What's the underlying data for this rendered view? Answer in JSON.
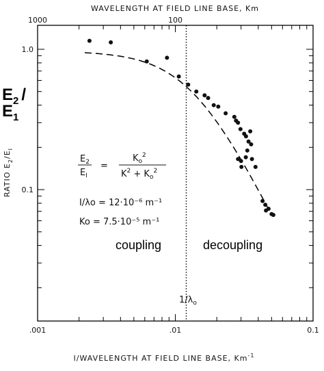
{
  "chart_data": {
    "type": "scatter",
    "top_axis_label": "WAVELENGTH AT FIELD LINE BASE, Km",
    "top_ticks": [
      "1000",
      "100"
    ],
    "xlabel": "I/WAVELENGTH AT FIELD LINE BASE, Km",
    "xlabel_sup": "-1",
    "ylabel": "RATIO E",
    "ylabel_sub1": "2",
    "ylabel_mid": "/E",
    "ylabel_sub2": "I",
    "x_ticks": [
      ".001",
      ".01",
      "0.1"
    ],
    "y_ticks": [
      "1.0",
      "0.1"
    ],
    "xlim": [
      0.001,
      0.1
    ],
    "ylim": [
      0.01,
      1.4
    ],
    "scale": "log-log",
    "points": [
      [
        0.00238,
        1.15
      ],
      [
        0.0034,
        1.12
      ],
      [
        0.0062,
        0.82
      ],
      [
        0.0087,
        0.87
      ],
      [
        0.0106,
        0.64
      ],
      [
        0.0124,
        0.56
      ],
      [
        0.0142,
        0.5
      ],
      [
        0.0163,
        0.47
      ],
      [
        0.0173,
        0.45
      ],
      [
        0.019,
        0.4
      ],
      [
        0.0205,
        0.39
      ],
      [
        0.0232,
        0.35
      ],
      [
        0.0268,
        0.33
      ],
      [
        0.0276,
        0.31
      ],
      [
        0.0285,
        0.3
      ],
      [
        0.0297,
        0.27
      ],
      [
        0.0316,
        0.25
      ],
      [
        0.0326,
        0.24
      ],
      [
        0.034,
        0.22
      ],
      [
        0.0355,
        0.21
      ],
      [
        0.035,
        0.26
      ],
      [
        0.03,
        0.16
      ],
      [
        0.0285,
        0.165
      ],
      [
        0.0302,
        0.145
      ],
      [
        0.0325,
        0.17
      ],
      [
        0.0333,
        0.19
      ],
      [
        0.036,
        0.165
      ],
      [
        0.0382,
        0.145
      ],
      [
        0.043,
        0.083
      ],
      [
        0.045,
        0.078
      ],
      [
        0.0455,
        0.071
      ],
      [
        0.0475,
        0.073
      ],
      [
        0.05,
        0.067
      ],
      [
        0.0515,
        0.066
      ]
    ],
    "fit_curve": {
      "formula": "E2/E1 = K0^2/(K^2+K0^2)",
      "k_min": 0.0022,
      "k_max": 0.05,
      "ratio_scale": 0.97
    },
    "vline_x": 0.012,
    "vline_label": "1/λ",
    "vline_label_sub": "o",
    "left_label_E2": "E",
    "left_label_E2_sub": "2",
    "left_label_slash": "/",
    "left_label_E1": "E",
    "left_label_E1_sub": "1",
    "equation": {
      "lhs_num": "E2",
      "lhs_den": "EI",
      "equals": "=",
      "rhs_num": "K0²",
      "rhs_den": "K² + K0²",
      "line2": "I/λo = 12·10⁻⁶ m⁻¹",
      "line3": "Ko = 7.5·10⁻⁵ m⁻¹"
    },
    "region_left": "coupling",
    "region_right": "decoupling"
  }
}
